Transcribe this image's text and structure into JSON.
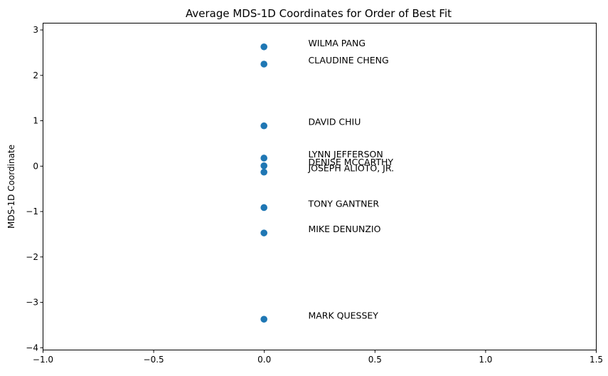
{
  "chart_data": {
    "type": "scatter",
    "title": "Average MDS-1D Coordinates for Order of Best Fit",
    "xlabel": "",
    "ylabel": "MDS-1D Coordinate",
    "xlim": [
      -1.0,
      1.5
    ],
    "ylim": [
      -4.05,
      3.15
    ],
    "xticks": [
      -1.0,
      -0.5,
      0.0,
      0.5,
      1.0,
      1.5
    ],
    "xtick_labels": [
      "−1.0",
      "−0.5",
      "0.0",
      "0.5",
      "1.0",
      "1.5"
    ],
    "yticks": [
      -4,
      -3,
      -2,
      -1,
      0,
      1,
      2,
      3
    ],
    "ytick_labels": [
      "−4",
      "−3",
      "−2",
      "−1",
      "0",
      "1",
      "2",
      "3"
    ],
    "grid": false,
    "marker_color": "#1f77b4",
    "points": [
      {
        "label": "WILMA PANG",
        "x": 0.0,
        "y": 2.62
      },
      {
        "label": "CLAUDINE CHENG",
        "x": 0.0,
        "y": 2.24
      },
      {
        "label": "DAVID CHIU",
        "x": 0.0,
        "y": 0.88
      },
      {
        "label": "LYNN JEFFERSON",
        "x": 0.0,
        "y": 0.17
      },
      {
        "label": "DENISE MCCARTHY",
        "x": 0.0,
        "y": 0.0
      },
      {
        "label": "JOSEPH ALIOTO, JR.",
        "x": 0.0,
        "y": -0.14
      },
      {
        "label": "TONY GANTNER",
        "x": 0.0,
        "y": -0.92
      },
      {
        "label": "MIKE DENUNZIO",
        "x": 0.0,
        "y": -1.48
      },
      {
        "label": "MARK QUESSEY",
        "x": 0.0,
        "y": -3.38
      }
    ],
    "label_x": 0.2
  }
}
